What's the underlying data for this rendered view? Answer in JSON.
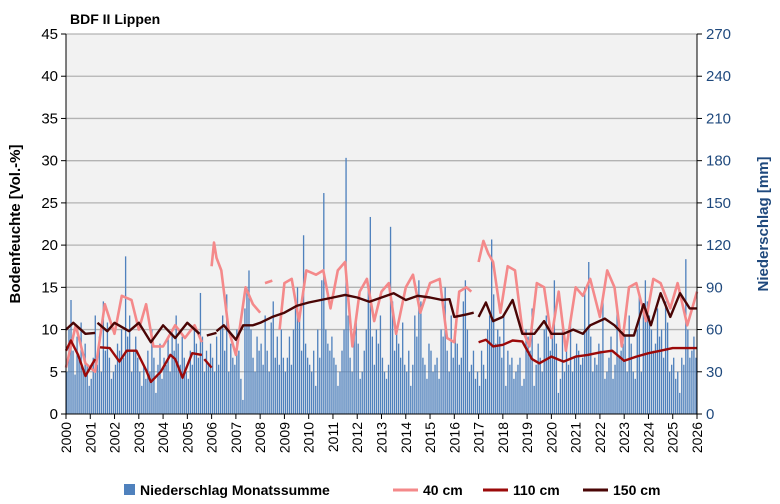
{
  "chart_data": {
    "type": "bar+line",
    "title": "BDF II Lippen",
    "ylabel": "Bodenfeuchte [Vol.-%]",
    "y2label": "Niederschlag [mm]",
    "ylim": [
      0,
      45
    ],
    "y2lim": [
      0,
      270
    ],
    "yticks": [
      0,
      5,
      10,
      15,
      20,
      25,
      30,
      35,
      40,
      45
    ],
    "y2ticks": [
      0,
      30,
      60,
      90,
      120,
      150,
      180,
      210,
      240,
      270
    ],
    "xlim": [
      2000,
      2026
    ],
    "xticks": [
      2000,
      2001,
      2002,
      2003,
      2004,
      2005,
      2006,
      2007,
      2008,
      2009,
      2010,
      2011,
      2012,
      2013,
      2014,
      2015,
      2016,
      2017,
      2018,
      2019,
      2020,
      2021,
      2022,
      2023,
      2024,
      2025,
      2026
    ],
    "grid": true,
    "legend_placement": "bottom",
    "colors": {
      "bars": "#4f81bd",
      "40cm": "#f4898a",
      "110cm": "#9b0a0a",
      "150cm": "#4a0505",
      "plot_bg": "#f2f2f2",
      "grid": "#b3b3b3"
    },
    "precip": {
      "name": "Niederschlag Monatssumme",
      "start_year": 2000,
      "monthly_mm": [
        30,
        60,
        81,
        45,
        28,
        55,
        40,
        65,
        30,
        50,
        35,
        20,
        25,
        40,
        70,
        35,
        55,
        30,
        80,
        45,
        65,
        40,
        25,
        30,
        35,
        50,
        45,
        60,
        40,
        112,
        55,
        70,
        30,
        45,
        55,
        40,
        30,
        20,
        35,
        25,
        45,
        30,
        60,
        40,
        15,
        35,
        50,
        25,
        40,
        35,
        55,
        30,
        60,
        45,
        70,
        50,
        35,
        55,
        40,
        30,
        25,
        45,
        35,
        60,
        50,
        40,
        86,
        55,
        30,
        45,
        35,
        50,
        40,
        30,
        55,
        35,
        60,
        70,
        45,
        85,
        30,
        50,
        40,
        35,
        60,
        45,
        25,
        10,
        75,
        90,
        102,
        60,
        40,
        30,
        55,
        45,
        50,
        35,
        70,
        45,
        30,
        65,
        80,
        40,
        55,
        35,
        60,
        40,
        30,
        40,
        55,
        35,
        60,
        75,
        90,
        70,
        45,
        127,
        50,
        40,
        35,
        30,
        45,
        20,
        60,
        40,
        95,
        157,
        60,
        50,
        45,
        55,
        40,
        35,
        20,
        30,
        45,
        60,
        182,
        70,
        40,
        30,
        55,
        65,
        50,
        25,
        30,
        45,
        60,
        90,
        140,
        55,
        35,
        60,
        50,
        70,
        40,
        30,
        25,
        35,
        133,
        80,
        45,
        60,
        50,
        40,
        65,
        35,
        30,
        45,
        20,
        35,
        70,
        55,
        95,
        80,
        40,
        35,
        25,
        50,
        45,
        30,
        35,
        40,
        25,
        60,
        55,
        90,
        45,
        30,
        70,
        40,
        55,
        50,
        35,
        40,
        80,
        95,
        60,
        30,
        35,
        45,
        25,
        30,
        20,
        45,
        35,
        25,
        60,
        70,
        124,
        85,
        50,
        60,
        55,
        40,
        70,
        20,
        45,
        35,
        40,
        25,
        30,
        35,
        40,
        20,
        25,
        60,
        55,
        45,
        75,
        20,
        35,
        50,
        40,
        30,
        60,
        70,
        55,
        45,
        60,
        95,
        50,
        15,
        25,
        60,
        30,
        45,
        35,
        65,
        30,
        40,
        50,
        45,
        35,
        40,
        90,
        60,
        108,
        55,
        30,
        40,
        35,
        50,
        45,
        80,
        25,
        30,
        40,
        55,
        25,
        35,
        75,
        40,
        45,
        50,
        55,
        30,
        70,
        50,
        30,
        25,
        60,
        85,
        30,
        75,
        95,
        80,
        70,
        60,
        45,
        50,
        75,
        55,
        60,
        40,
        80,
        65,
        30,
        35,
        40,
        25,
        30,
        15,
        40,
        35,
        110,
        60,
        40,
        45,
        55,
        40
      ]
    },
    "series": [
      {
        "name": "40 cm",
        "segments": [
          [
            [
              2000,
              5.5
            ],
            [
              2000.4,
              10.5
            ],
            [
              2000.8,
              6
            ],
            [
              2001.2,
              5
            ],
            [
              2001.6,
              13
            ],
            [
              2002,
              9.5
            ],
            [
              2002.3,
              14
            ],
            [
              2002.7,
              13.5
            ],
            [
              2003,
              10
            ],
            [
              2003.3,
              13
            ],
            [
              2003.6,
              8
            ],
            [
              2004,
              8
            ],
            [
              2004.5,
              10.5
            ],
            [
              2004.9,
              9
            ],
            [
              2005.3,
              10.5
            ],
            [
              2005.6,
              8.5
            ]
          ],
          [
            [
              2006,
              17.5
            ],
            [
              2006.1,
              20.3
            ],
            [
              2006.2,
              18.5
            ],
            [
              2006.4,
              17
            ],
            [
              2006.7,
              10
            ],
            [
              2007,
              7
            ],
            [
              2007.4,
              15
            ],
            [
              2007.7,
              13
            ],
            [
              2008,
              12
            ]
          ],
          [
            [
              2008.2,
              15.5
            ],
            [
              2008.5,
              15.8
            ]
          ],
          [
            [
              2008.8,
              10
            ],
            [
              2009,
              15.5
            ],
            [
              2009.3,
              16
            ],
            [
              2009.6,
              11
            ],
            [
              2009.9,
              17
            ],
            [
              2010.3,
              16.5
            ],
            [
              2010.6,
              17
            ],
            [
              2010.9,
              12.5
            ],
            [
              2011.2,
              17
            ],
            [
              2011.5,
              18
            ],
            [
              2011.8,
              8
            ],
            [
              2012.1,
              14.5
            ],
            [
              2012.4,
              16
            ],
            [
              2012.7,
              11
            ],
            [
              2013,
              14.5
            ],
            [
              2013.3,
              15.5
            ],
            [
              2013.6,
              9.5
            ],
            [
              2014,
              15
            ],
            [
              2014.3,
              16.5
            ],
            [
              2014.6,
              12
            ],
            [
              2015,
              15.5
            ],
            [
              2015.4,
              16
            ],
            [
              2015.7,
              9
            ],
            [
              2016,
              8.5
            ],
            [
              2016.2,
              14.5
            ],
            [
              2016.5,
              15
            ],
            [
              2016.7,
              14.5
            ]
          ],
          [
            [
              2017,
              18
            ],
            [
              2017.2,
              20.5
            ],
            [
              2017.4,
              19
            ],
            [
              2017.6,
              18
            ],
            [
              2017.9,
              12
            ],
            [
              2018.2,
              17.5
            ],
            [
              2018.5,
              17
            ],
            [
              2018.8,
              10
            ],
            [
              2019.1,
              8
            ],
            [
              2019.4,
              15.5
            ],
            [
              2019.7,
              15
            ],
            [
              2020,
              9
            ],
            [
              2020.3,
              14.5
            ],
            [
              2020.6,
              7.5
            ],
            [
              2021,
              15
            ],
            [
              2021.3,
              14
            ],
            [
              2021.6,
              16
            ],
            [
              2022,
              11.5
            ],
            [
              2022.3,
              17
            ],
            [
              2022.6,
              15
            ],
            [
              2022.9,
              8
            ],
            [
              2023.2,
              15
            ],
            [
              2023.5,
              15.5
            ],
            [
              2023.9,
              11
            ],
            [
              2024.2,
              16
            ],
            [
              2024.5,
              15.5
            ],
            [
              2024.9,
              12.5
            ],
            [
              2025.2,
              15.5
            ],
            [
              2025.6,
              10.5
            ],
            [
              2026,
              14.5
            ]
          ]
        ]
      },
      {
        "name": "110 cm",
        "segments": [
          [
            [
              2000,
              7.5
            ],
            [
              2000.2,
              8.7
            ],
            [
              2000.5,
              7
            ],
            [
              2000.8,
              4.5
            ],
            [
              2001.2,
              6.5
            ]
          ],
          [
            [
              2001.4,
              7.9
            ],
            [
              2001.8,
              7.8
            ],
            [
              2002.2,
              6.2
            ],
            [
              2002.5,
              7.5
            ],
            [
              2002.9,
              7.5
            ],
            [
              2003.3,
              5.2
            ],
            [
              2003.5,
              3.8
            ],
            [
              2003.9,
              5
            ],
            [
              2004.3,
              7
            ],
            [
              2004.5,
              6.5
            ],
            [
              2004.8,
              4.3
            ],
            [
              2005.2,
              7.2
            ],
            [
              2005.6,
              7
            ]
          ],
          [
            [
              2005.7,
              6.5
            ],
            [
              2006,
              5.5
            ]
          ],
          [
            [
              2017,
              8.5
            ],
            [
              2017.3,
              8.8
            ],
            [
              2017.6,
              8
            ],
            [
              2018,
              8.2
            ],
            [
              2018.4,
              8.7
            ],
            [
              2018.8,
              8.6
            ],
            [
              2019.2,
              6.5
            ],
            [
              2019.5,
              6
            ],
            [
              2020,
              6.8
            ],
            [
              2020.5,
              6.2
            ],
            [
              2021,
              6.8
            ],
            [
              2021.5,
              7
            ],
            [
              2022,
              7.3
            ],
            [
              2022.5,
              7.5
            ],
            [
              2023,
              6.3
            ],
            [
              2023.5,
              6.8
            ],
            [
              2024,
              7.2
            ],
            [
              2024.5,
              7.5
            ],
            [
              2025,
              7.8
            ],
            [
              2026,
              7.8
            ]
          ]
        ]
      },
      {
        "name": "150 cm",
        "segments": [
          [
            [
              2000,
              10
            ],
            [
              2000.3,
              10.8
            ],
            [
              2000.8,
              9.5
            ],
            [
              2001.2,
              9.6
            ]
          ],
          [
            [
              2001.3,
              10.8
            ],
            [
              2001.7,
              9.8
            ],
            [
              2002,
              10.8
            ],
            [
              2002.6,
              9.8
            ],
            [
              2003,
              10.8
            ],
            [
              2003.5,
              8.5
            ],
            [
              2004,
              10.5
            ],
            [
              2004.5,
              9
            ],
            [
              2005,
              10.8
            ],
            [
              2005.5,
              9.5
            ]
          ],
          [
            [
              2005.8,
              9.3
            ],
            [
              2006.2,
              9.6
            ]
          ],
          [
            [
              2006.2,
              9.8
            ],
            [
              2006.5,
              10.5
            ],
            [
              2006.8,
              9.5
            ],
            [
              2007,
              8.8
            ],
            [
              2007.3,
              10.5
            ],
            [
              2007.7,
              10.5
            ],
            [
              2008,
              10.8
            ],
            [
              2008.5,
              11.5
            ],
            [
              2009,
              12
            ],
            [
              2009.5,
              12.8
            ],
            [
              2010,
              13.2
            ],
            [
              2010.5,
              13.5
            ],
            [
              2011,
              13.8
            ],
            [
              2011.5,
              14.1
            ],
            [
              2012,
              13.8
            ],
            [
              2012.5,
              13.3
            ],
            [
              2013,
              13.8
            ],
            [
              2013.5,
              14.3
            ],
            [
              2014,
              13.5
            ],
            [
              2014.5,
              14
            ],
            [
              2015,
              13.8
            ],
            [
              2015.5,
              13.5
            ],
            [
              2015.8,
              13.6
            ],
            [
              2016,
              11.5
            ],
            [
              2016.5,
              11.8
            ],
            [
              2016.8,
              12
            ]
          ],
          [
            [
              2017,
              11.5
            ],
            [
              2017.3,
              13.2
            ],
            [
              2017.6,
              11
            ],
            [
              2018,
              11.5
            ],
            [
              2018.4,
              13.5
            ],
            [
              2018.8,
              9.5
            ],
            [
              2019.3,
              9.5
            ],
            [
              2019.7,
              11
            ],
            [
              2020,
              9.5
            ],
            [
              2020.5,
              9.5
            ],
            [
              2020.9,
              10
            ],
            [
              2021.3,
              9.5
            ],
            [
              2021.6,
              10.5
            ],
            [
              2022.2,
              11.3
            ],
            [
              2022.6,
              10.5
            ],
            [
              2023,
              9.3
            ],
            [
              2023.4,
              9.3
            ],
            [
              2023.8,
              13
            ],
            [
              2024.1,
              10.5
            ],
            [
              2024.5,
              14.3
            ],
            [
              2024.9,
              11.5
            ],
            [
              2025.3,
              14.3
            ],
            [
              2025.7,
              12.5
            ],
            [
              2026,
              12.5
            ]
          ]
        ]
      }
    ]
  }
}
